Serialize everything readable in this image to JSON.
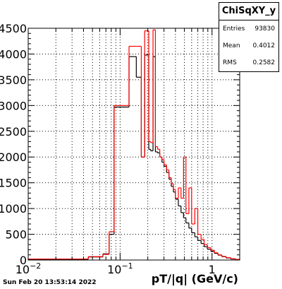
{
  "chart_data": {
    "type": "histogram",
    "xlabel": "pT/|q| (GeV/c)",
    "xscale": "log",
    "xlim": [
      0.01,
      2.0
    ],
    "ylim": [
      0,
      4500
    ],
    "grid": true,
    "yticks": [
      "0",
      "500",
      "1000",
      "1500",
      "2000",
      "2500",
      "3000",
      "3500",
      "4000",
      "4500"
    ],
    "xticks": [
      {
        "value": 0.01,
        "base": "10",
        "exp": "−2"
      },
      {
        "value": 0.1,
        "base": "10",
        "exp": "−1"
      },
      {
        "value": 1,
        "base": "1",
        "exp": ""
      }
    ],
    "series": [
      {
        "color": "#000000",
        "bins": [
          [
            0.01,
            0.045,
            15
          ],
          [
            0.045,
            0.065,
            60
          ],
          [
            0.065,
            0.076,
            120
          ],
          [
            0.076,
            0.086,
            500
          ],
          [
            0.086,
            0.125,
            2970
          ],
          [
            0.125,
            0.15,
            3950
          ],
          [
            0.15,
            0.17,
            3550
          ],
          [
            0.17,
            0.185,
            2000
          ],
          [
            0.185,
            0.205,
            3980
          ],
          [
            0.205,
            0.215,
            2150
          ],
          [
            0.215,
            0.228,
            2120
          ],
          [
            0.228,
            0.242,
            3950
          ],
          [
            0.242,
            0.256,
            2100
          ],
          [
            0.256,
            0.27,
            2080
          ],
          [
            0.27,
            0.285,
            2000
          ],
          [
            0.285,
            0.3,
            1900
          ],
          [
            0.3,
            0.32,
            1820
          ],
          [
            0.32,
            0.34,
            1700
          ],
          [
            0.34,
            0.36,
            1570
          ],
          [
            0.36,
            0.38,
            1430
          ],
          [
            0.38,
            0.4,
            1320
          ],
          [
            0.4,
            0.43,
            1180
          ],
          [
            0.43,
            0.46,
            1050
          ],
          [
            0.46,
            0.49,
            920
          ],
          [
            0.49,
            0.52,
            820
          ],
          [
            0.52,
            0.56,
            720
          ],
          [
            0.56,
            0.6,
            620
          ],
          [
            0.6,
            0.65,
            530
          ],
          [
            0.65,
            0.7,
            450
          ],
          [
            0.7,
            0.76,
            380
          ],
          [
            0.76,
            0.82,
            320
          ],
          [
            0.82,
            0.89,
            260
          ],
          [
            0.89,
            0.97,
            210
          ],
          [
            0.97,
            1.06,
            170
          ],
          [
            1.06,
            1.16,
            130
          ],
          [
            1.16,
            1.28,
            95
          ],
          [
            1.28,
            1.42,
            65
          ],
          [
            1.42,
            1.6,
            40
          ],
          [
            1.6,
            1.8,
            20
          ],
          [
            1.8,
            2.0,
            10
          ]
        ]
      },
      {
        "color": "#ff0000",
        "bins": [
          [
            0.01,
            0.045,
            20
          ],
          [
            0.045,
            0.065,
            65
          ],
          [
            0.065,
            0.076,
            110
          ],
          [
            0.076,
            0.086,
            550
          ],
          [
            0.086,
            0.125,
            3000
          ],
          [
            0.125,
            0.15,
            4150
          ],
          [
            0.15,
            0.17,
            4150
          ],
          [
            0.17,
            0.185,
            2000
          ],
          [
            0.185,
            0.205,
            4450
          ],
          [
            0.205,
            0.215,
            2300
          ],
          [
            0.215,
            0.228,
            2280
          ],
          [
            0.228,
            0.242,
            4470
          ],
          [
            0.242,
            0.256,
            2200
          ],
          [
            0.256,
            0.27,
            2150
          ],
          [
            0.27,
            0.285,
            2000
          ],
          [
            0.285,
            0.3,
            1950
          ],
          [
            0.3,
            0.32,
            1850
          ],
          [
            0.32,
            0.34,
            1750
          ],
          [
            0.34,
            0.36,
            1600
          ],
          [
            0.36,
            0.38,
            1480
          ],
          [
            0.38,
            0.4,
            1370
          ],
          [
            0.4,
            0.43,
            1200
          ],
          [
            0.43,
            0.46,
            1400
          ],
          [
            0.46,
            0.49,
            1200
          ],
          [
            0.49,
            0.52,
            2000
          ],
          [
            0.52,
            0.56,
            900
          ],
          [
            0.56,
            0.6,
            1400
          ],
          [
            0.6,
            0.65,
            700
          ],
          [
            0.65,
            0.7,
            1000
          ],
          [
            0.7,
            0.76,
            500
          ],
          [
            0.76,
            0.82,
            400
          ],
          [
            0.82,
            0.89,
            300
          ],
          [
            0.89,
            0.97,
            240
          ],
          [
            0.97,
            1.06,
            190
          ],
          [
            1.06,
            1.16,
            140
          ],
          [
            1.16,
            1.28,
            100
          ],
          [
            1.28,
            1.42,
            70
          ],
          [
            1.42,
            1.6,
            45
          ],
          [
            1.6,
            1.8,
            25
          ],
          [
            1.8,
            2.0,
            12
          ]
        ]
      }
    ]
  },
  "stats": {
    "title": "ChiSqXY_y",
    "rows": [
      {
        "label": "Entries",
        "value": "93830"
      },
      {
        "label": "Mean",
        "value": "0.4012"
      },
      {
        "label": "RMS",
        "value": "0.2582"
      }
    ]
  },
  "footer": "Sun Feb 20 13:53:14 2022"
}
